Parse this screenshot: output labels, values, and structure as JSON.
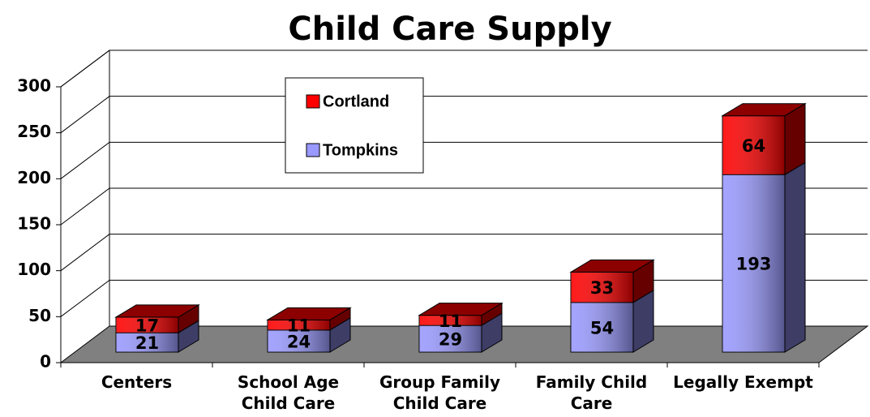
{
  "chart_data": {
    "type": "bar3d_stacked",
    "title": "Child Care Supply",
    "categories": [
      "Centers",
      "School Age Child Care",
      "Group Family Child Care",
      "Family Child Care",
      "Legally Exempt"
    ],
    "series": [
      {
        "name": "Tompkins",
        "color": "#9999ff",
        "values": [
          21,
          24,
          29,
          54,
          193
        ]
      },
      {
        "name": "Cortland",
        "color": "#ff0000",
        "values": [
          17,
          11,
          11,
          33,
          64
        ]
      }
    ],
    "ylim": [
      0,
      300
    ],
    "yticks": [
      0,
      50,
      100,
      150,
      200,
      250,
      300
    ],
    "grid": true,
    "legend": "top-left"
  }
}
